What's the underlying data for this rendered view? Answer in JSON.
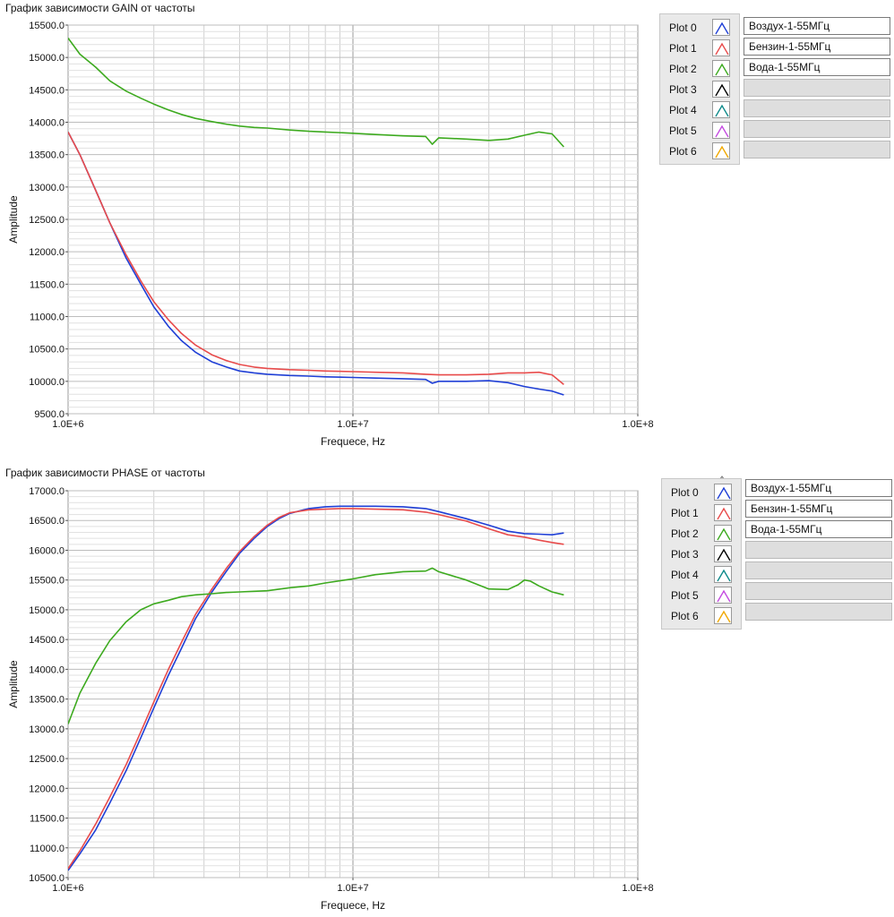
{
  "panels": [
    {
      "title": "График зависимости GAIN от частоты",
      "legend": {
        "plots": [
          {
            "label": "Plot 0",
            "color": "#1f3fd6",
            "name": "Воздух-1-55МГц",
            "icon": "plot-line-icon"
          },
          {
            "label": "Plot 1",
            "color": "#e84b4b",
            "name": "Бензин-1-55МГц",
            "icon": "plot-line-icon"
          },
          {
            "label": "Plot 2",
            "color": "#3daa1f",
            "name": "Вода-1-55МГц",
            "icon": "plot-line-icon"
          },
          {
            "label": "Plot 3",
            "color": "#000000",
            "name": "",
            "icon": "plot-line-icon"
          },
          {
            "label": "Plot 4",
            "color": "#0f8a8a",
            "name": "",
            "icon": "plot-line-icon"
          },
          {
            "label": "Plot 5",
            "color": "#c44be0",
            "name": "",
            "icon": "plot-line-icon"
          },
          {
            "label": "Plot 6",
            "color": "#f0a800",
            "name": "",
            "icon": "plot-line-icon"
          }
        ]
      }
    },
    {
      "title": "График зависимости PHASE от частоты",
      "legend": {
        "plots": [
          {
            "label": "Plot 0",
            "color": "#1f3fd6",
            "name": "Воздух-1-55МГц",
            "icon": "plot-line-icon"
          },
          {
            "label": "Plot 1",
            "color": "#e84b4b",
            "name": "Бензин-1-55МГц",
            "icon": "plot-line-icon"
          },
          {
            "label": "Plot 2",
            "color": "#3daa1f",
            "name": "Вода-1-55МГц",
            "icon": "plot-line-icon"
          },
          {
            "label": "Plot 3",
            "color": "#000000",
            "name": "",
            "icon": "plot-line-icon"
          },
          {
            "label": "Plot 4",
            "color": "#0f8a8a",
            "name": "",
            "icon": "plot-line-icon"
          },
          {
            "label": "Plot 5",
            "color": "#c44be0",
            "name": "",
            "icon": "plot-line-icon"
          },
          {
            "label": "Plot 6",
            "color": "#f0a800",
            "name": "",
            "icon": "plot-line-icon"
          }
        ]
      }
    }
  ],
  "chart_data": [
    {
      "type": "line",
      "title": "График зависимости GAIN от частоты",
      "xlabel": "Frequece, Hz",
      "ylabel": "Amplitude",
      "xscale": "log",
      "xlim": [
        1000000,
        100000000
      ],
      "ylim": [
        9500,
        15500
      ],
      "x_ticks": [
        1000000,
        10000000,
        100000000
      ],
      "x_tick_labels": [
        "1.0E+6",
        "1.0E+7",
        "1.0E+8"
      ],
      "y_ticks": [
        9500,
        10000,
        10500,
        11000,
        11500,
        12000,
        12500,
        13000,
        13500,
        14000,
        14500,
        15000,
        15500
      ],
      "y_tick_labels": [
        "9500.0",
        "10000.0",
        "10500.0",
        "11000.0",
        "11500.0",
        "12000.0",
        "12500.0",
        "13000.0",
        "13500.0",
        "14000.0",
        "14500.0",
        "15000.0",
        "15500.0"
      ],
      "grid": true,
      "legend_position": "right",
      "series": [
        {
          "name": "Воздух-1-55МГц",
          "color": "#1f3fd6",
          "x": [
            1000000,
            1100000,
            1250000,
            1400000,
            1600000,
            1800000,
            2000000,
            2250000,
            2500000,
            2800000,
            3200000,
            3600000,
            4000000,
            4500000,
            5000000,
            6000000,
            7000000,
            8000000,
            10000000,
            12000000,
            15000000,
            18000000,
            19000000,
            20000000,
            25000000,
            30000000,
            35000000,
            40000000,
            45000000,
            50000000,
            55000000
          ],
          "y": [
            13850,
            13500,
            12950,
            12450,
            11900,
            11500,
            11150,
            10850,
            10630,
            10450,
            10300,
            10220,
            10160,
            10130,
            10110,
            10090,
            10080,
            10070,
            10060,
            10050,
            10040,
            10030,
            9970,
            10000,
            10000,
            10010,
            9980,
            9920,
            9880,
            9850,
            9790
          ]
        },
        {
          "name": "Бензин-1-55МГц",
          "color": "#e84b4b",
          "x": [
            1000000,
            1100000,
            1250000,
            1400000,
            1600000,
            1800000,
            2000000,
            2250000,
            2500000,
            2800000,
            3200000,
            3600000,
            4000000,
            4500000,
            5000000,
            6000000,
            7000000,
            8000000,
            10000000,
            12000000,
            15000000,
            18000000,
            20000000,
            25000000,
            30000000,
            35000000,
            40000000,
            45000000,
            50000000,
            55000000
          ],
          "y": [
            13850,
            13500,
            12950,
            12450,
            11950,
            11550,
            11230,
            10950,
            10740,
            10560,
            10410,
            10320,
            10260,
            10220,
            10200,
            10180,
            10170,
            10160,
            10150,
            10140,
            10130,
            10110,
            10100,
            10100,
            10110,
            10130,
            10130,
            10140,
            10100,
            9950
          ]
        },
        {
          "name": "Вода-1-55МГц",
          "color": "#3daa1f",
          "x": [
            1000000,
            1100000,
            1250000,
            1400000,
            1600000,
            1800000,
            2000000,
            2250000,
            2500000,
            2800000,
            3200000,
            3600000,
            4000000,
            4500000,
            5000000,
            6000000,
            7000000,
            8000000,
            10000000,
            12000000,
            15000000,
            18000000,
            19000000,
            20000000,
            25000000,
            30000000,
            35000000,
            40000000,
            45000000,
            50000000,
            55000000
          ],
          "y": [
            15300,
            15050,
            14850,
            14640,
            14480,
            14370,
            14280,
            14190,
            14120,
            14060,
            14010,
            13970,
            13940,
            13920,
            13910,
            13880,
            13860,
            13850,
            13830,
            13810,
            13790,
            13780,
            13660,
            13760,
            13740,
            13720,
            13740,
            13800,
            13850,
            13820,
            13620
          ]
        }
      ]
    },
    {
      "type": "line",
      "title": "График зависимости PHASE от частоты",
      "xlabel": "Frequece, Hz",
      "ylabel": "Amplitude",
      "xscale": "log",
      "xlim": [
        1000000,
        100000000
      ],
      "ylim": [
        10500,
        17000
      ],
      "x_ticks": [
        1000000,
        10000000,
        100000000
      ],
      "x_tick_labels": [
        "1.0E+6",
        "1.0E+7",
        "1.0E+8"
      ],
      "y_ticks": [
        10500,
        11000,
        11500,
        12000,
        12500,
        13000,
        13500,
        14000,
        14500,
        15000,
        15500,
        16000,
        16500,
        17000
      ],
      "y_tick_labels": [
        "10500.0",
        "11000.0",
        "11500.0",
        "12000.0",
        "12500.0",
        "13000.0",
        "13500.0",
        "14000.0",
        "14500.0",
        "15000.0",
        "15500.0",
        "16000.0",
        "16500.0",
        "17000.0"
      ],
      "grid": true,
      "legend_position": "right",
      "series": [
        {
          "name": "Воздух-1-55МГц",
          "color": "#1f3fd6",
          "x": [
            1000000,
            1100000,
            1250000,
            1400000,
            1600000,
            1800000,
            2000000,
            2250000,
            2500000,
            2800000,
            3200000,
            3600000,
            4000000,
            4500000,
            5000000,
            5500000,
            6000000,
            7000000,
            8000000,
            9000000,
            10000000,
            12000000,
            15000000,
            18000000,
            20000000,
            25000000,
            30000000,
            35000000,
            40000000,
            45000000,
            50000000,
            55000000
          ],
          "y": [
            10620,
            10900,
            11300,
            11750,
            12300,
            12850,
            13350,
            13900,
            14350,
            14850,
            15300,
            15650,
            15950,
            16200,
            16400,
            16530,
            16620,
            16700,
            16730,
            16740,
            16740,
            16740,
            16730,
            16700,
            16650,
            16530,
            16420,
            16320,
            16280,
            16270,
            16260,
            16290
          ]
        },
        {
          "name": "Бензин-1-55МГц",
          "color": "#e84b4b",
          "x": [
            1000000,
            1100000,
            1250000,
            1400000,
            1600000,
            1800000,
            2000000,
            2250000,
            2500000,
            2800000,
            3200000,
            3600000,
            4000000,
            4500000,
            5000000,
            5500000,
            6000000,
            7000000,
            8000000,
            9000000,
            10000000,
            12000000,
            15000000,
            18000000,
            20000000,
            25000000,
            30000000,
            35000000,
            40000000,
            45000000,
            50000000,
            55000000
          ],
          "y": [
            10650,
            10950,
            11400,
            11850,
            12400,
            12950,
            13450,
            14000,
            14450,
            14920,
            15350,
            15700,
            15980,
            16230,
            16420,
            16550,
            16630,
            16680,
            16690,
            16700,
            16700,
            16690,
            16680,
            16640,
            16600,
            16490,
            16360,
            16260,
            16220,
            16170,
            16130,
            16100
          ]
        },
        {
          "name": "Вода-1-55МГц",
          "color": "#3daa1f",
          "x": [
            1000000,
            1100000,
            1250000,
            1400000,
            1600000,
            1800000,
            2000000,
            2250000,
            2500000,
            2800000,
            3200000,
            3600000,
            4000000,
            4500000,
            5000000,
            6000000,
            7000000,
            8000000,
            10000000,
            12000000,
            15000000,
            18000000,
            19000000,
            20000000,
            25000000,
            30000000,
            35000000,
            38000000,
            40000000,
            42000000,
            45000000,
            50000000,
            55000000
          ],
          "y": [
            13080,
            13600,
            14100,
            14480,
            14800,
            15000,
            15100,
            15160,
            15220,
            15250,
            15270,
            15290,
            15300,
            15310,
            15320,
            15370,
            15400,
            15450,
            15520,
            15590,
            15640,
            15650,
            15700,
            15640,
            15500,
            15350,
            15340,
            15420,
            15500,
            15480,
            15400,
            15300,
            15250
          ]
        }
      ]
    }
  ]
}
